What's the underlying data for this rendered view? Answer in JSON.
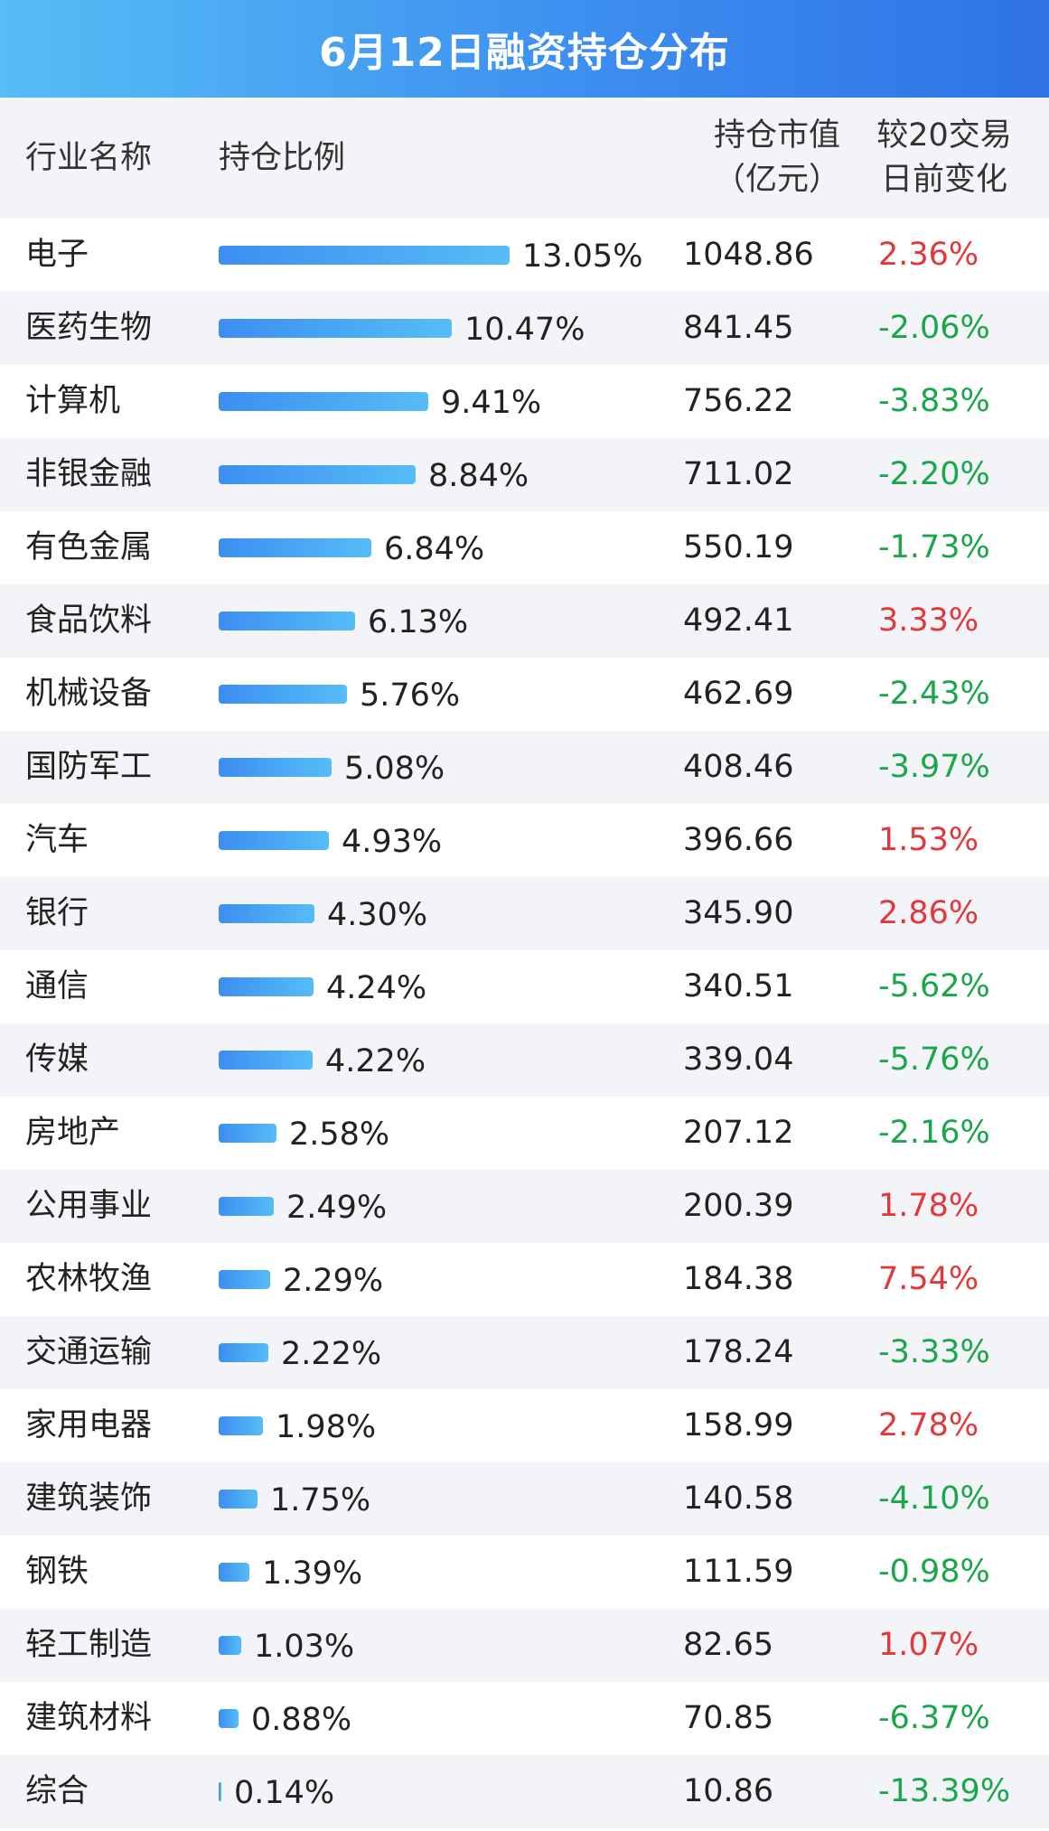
{
  "title": "6月12日融资持仓分布",
  "header": {
    "industry": "行业名称",
    "share": "持仓比例",
    "value_line1": "持仓市值",
    "value_line2": "（亿元）",
    "change_line1": "较20交易",
    "change_line2": "日前变化"
  },
  "colors": {
    "up": "#e2383c",
    "down": "#1aa64a",
    "bar_start": "#3c8ef1",
    "bar_end": "#56bdf6",
    "banner": "#3d8ff0",
    "stripe": "#f3f4f7"
  },
  "chart_data": {
    "type": "table",
    "title": "6月12日融资持仓分布",
    "columns": [
      "行业名称",
      "持仓比例",
      "持仓市值（亿元）",
      "较20交易日前变化"
    ],
    "rows": [
      {
        "industry": "电子",
        "share": 13.05,
        "share_text": "13.05%",
        "value": "1048.86",
        "change": 2.36,
        "change_text": "2.36%"
      },
      {
        "industry": "医药生物",
        "share": 10.47,
        "share_text": "10.47%",
        "value": "841.45",
        "change": -2.06,
        "change_text": "-2.06%"
      },
      {
        "industry": "计算机",
        "share": 9.41,
        "share_text": "9.41%",
        "value": "756.22",
        "change": -3.83,
        "change_text": "-3.83%"
      },
      {
        "industry": "非银金融",
        "share": 8.84,
        "share_text": "8.84%",
        "value": "711.02",
        "change": -2.2,
        "change_text": "-2.20%"
      },
      {
        "industry": "有色金属",
        "share": 6.84,
        "share_text": "6.84%",
        "value": "550.19",
        "change": -1.73,
        "change_text": "-1.73%"
      },
      {
        "industry": "食品饮料",
        "share": 6.13,
        "share_text": "6.13%",
        "value": "492.41",
        "change": 3.33,
        "change_text": "3.33%"
      },
      {
        "industry": "机械设备",
        "share": 5.76,
        "share_text": "5.76%",
        "value": "462.69",
        "change": -2.43,
        "change_text": "-2.43%"
      },
      {
        "industry": "国防军工",
        "share": 5.08,
        "share_text": "5.08%",
        "value": "408.46",
        "change": -3.97,
        "change_text": "-3.97%"
      },
      {
        "industry": "汽车",
        "share": 4.93,
        "share_text": "4.93%",
        "value": "396.66",
        "change": 1.53,
        "change_text": "1.53%"
      },
      {
        "industry": "银行",
        "share": 4.3,
        "share_text": "4.30%",
        "value": "345.90",
        "change": 2.86,
        "change_text": "2.86%"
      },
      {
        "industry": "通信",
        "share": 4.24,
        "share_text": "4.24%",
        "value": "340.51",
        "change": -5.62,
        "change_text": "-5.62%"
      },
      {
        "industry": "传媒",
        "share": 4.22,
        "share_text": "4.22%",
        "value": "339.04",
        "change": -5.76,
        "change_text": "-5.76%"
      },
      {
        "industry": "房地产",
        "share": 2.58,
        "share_text": "2.58%",
        "value": "207.12",
        "change": -2.16,
        "change_text": "-2.16%"
      },
      {
        "industry": "公用事业",
        "share": 2.49,
        "share_text": "2.49%",
        "value": "200.39",
        "change": 1.78,
        "change_text": "1.78%"
      },
      {
        "industry": "农林牧渔",
        "share": 2.29,
        "share_text": "2.29%",
        "value": "184.38",
        "change": 7.54,
        "change_text": "7.54%"
      },
      {
        "industry": "交通运输",
        "share": 2.22,
        "share_text": "2.22%",
        "value": "178.24",
        "change": -3.33,
        "change_text": "-3.33%"
      },
      {
        "industry": "家用电器",
        "share": 1.98,
        "share_text": "1.98%",
        "value": "158.99",
        "change": 2.78,
        "change_text": "2.78%"
      },
      {
        "industry": "建筑装饰",
        "share": 1.75,
        "share_text": "1.75%",
        "value": "140.58",
        "change": -4.1,
        "change_text": "-4.10%"
      },
      {
        "industry": "钢铁",
        "share": 1.39,
        "share_text": "1.39%",
        "value": "111.59",
        "change": -0.98,
        "change_text": "-0.98%"
      },
      {
        "industry": "轻工制造",
        "share": 1.03,
        "share_text": "1.03%",
        "value": "82.65",
        "change": 1.07,
        "change_text": "1.07%"
      },
      {
        "industry": "建筑材料",
        "share": 0.88,
        "share_text": "0.88%",
        "value": "70.85",
        "change": -6.37,
        "change_text": "-6.37%"
      },
      {
        "industry": "综合",
        "share": 0.14,
        "share_text": "0.14%",
        "value": "10.86",
        "change": -13.39,
        "change_text": "-13.39%"
      }
    ]
  }
}
